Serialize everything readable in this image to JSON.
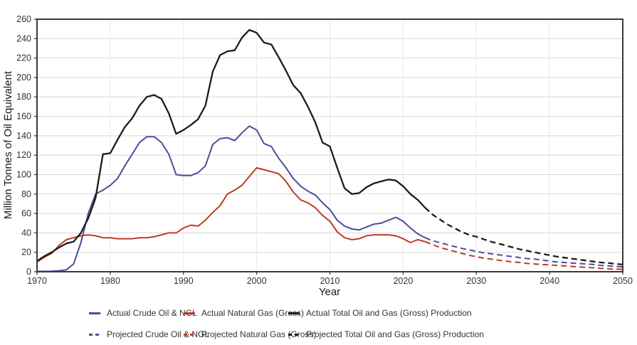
{
  "chart_data": {
    "type": "line",
    "title": "",
    "xlabel": "Year",
    "ylabel": "Million Tonnes of Oil Equivalent",
    "x_range": [
      1970,
      2050
    ],
    "y_range": [
      0,
      260
    ],
    "x_ticks": [
      1970,
      1980,
      1990,
      2000,
      2010,
      2020,
      2030,
      2040,
      2050
    ],
    "y_ticks": [
      0,
      20,
      40,
      60,
      80,
      100,
      120,
      140,
      160,
      180,
      200,
      220,
      240,
      260
    ],
    "grid": "both",
    "legend_position": "bottom",
    "series": [
      {
        "id": "actual-crude-oil-ngl",
        "label": "Actual Crude Oil & NGL",
        "color": "#4d4d99",
        "dash": "solid",
        "x_start": 1970,
        "x_step": 1,
        "values": [
          0.4,
          0.4,
          0.6,
          1,
          2,
          8,
          30,
          60,
          80,
          84,
          89,
          96,
          109,
          121,
          133,
          139,
          139,
          133,
          121,
          100,
          99,
          99,
          102,
          109,
          131,
          137,
          138,
          135,
          143,
          150,
          146,
          132,
          129,
          117,
          107,
          96,
          88,
          83,
          79,
          71,
          64,
          53,
          47,
          44,
          43,
          46,
          49,
          50,
          53,
          56,
          52,
          45,
          39,
          35
        ]
      },
      {
        "id": "actual-natural-gas-gross",
        "label": "Actual Natural Gas (Gross)",
        "color": "#c03a2b",
        "dash": "solid",
        "x_start": 1970,
        "x_step": 1,
        "values": [
          10,
          15,
          19,
          27,
          33,
          35,
          37,
          38,
          37,
          35,
          35,
          34,
          34,
          34,
          35,
          35,
          36,
          38,
          40,
          40,
          45,
          48,
          47,
          53,
          61,
          68,
          80,
          84,
          89,
          98,
          107,
          105,
          103,
          101,
          93,
          82,
          74,
          71,
          66,
          58,
          52,
          41,
          35,
          33,
          34,
          37,
          38,
          38,
          38,
          37,
          34,
          30,
          33,
          31
        ]
      },
      {
        "id": "actual-total-oil-and-gas-gross-production",
        "label": "Actual Total Oil and Gas (Gross) Production",
        "color": "#1c1c1c",
        "dash": "solid",
        "x_start": 1970,
        "x_step": 1,
        "values": [
          11,
          16,
          20,
          25,
          29,
          31,
          40,
          55,
          76,
          121,
          122,
          136,
          149,
          158,
          171,
          180,
          182,
          178,
          163,
          142,
          146,
          151,
          157,
          171,
          206,
          223,
          227,
          228,
          241,
          249,
          246,
          236,
          234,
          221,
          207,
          192,
          184,
          170,
          154,
          133,
          129,
          107,
          86,
          80,
          81,
          87,
          91,
          93,
          95,
          94,
          88,
          80,
          74,
          66
        ]
      },
      {
        "id": "projected-crude-oil-ngl",
        "label": "Projected Crude Oil & NGL",
        "color": "#4d4d99",
        "dash": "dashed",
        "x_start": 2023,
        "x_step": 1,
        "values": [
          35,
          32,
          30,
          28,
          26,
          24,
          22.5,
          21,
          19.5,
          18.5,
          17.5,
          16.5,
          15.5,
          14.5,
          13.5,
          13,
          12,
          11,
          10,
          9.5,
          9,
          8.5,
          8,
          7.5,
          6.5,
          6,
          5.5,
          5
        ]
      },
      {
        "id": "projected-natural-gas-gross",
        "label": "Projected Natural Gas (Gross)",
        "color": "#c03a2b",
        "dash": "dashed",
        "x_start": 2023,
        "x_step": 1,
        "values": [
          31,
          28,
          25,
          23,
          21,
          19,
          17,
          15.5,
          14,
          13,
          12,
          11,
          10,
          9.5,
          8.5,
          8,
          7.5,
          7,
          6.5,
          6,
          5.5,
          5,
          4.5,
          4,
          3.5,
          3,
          2.8,
          2.5
        ]
      },
      {
        "id": "projected-total-oil-and-gas-gross-production",
        "label": "Projected Total Oil and Gas (Gross) Production",
        "color": "#1c1c1c",
        "dash": "dashed",
        "x_start": 2023,
        "x_step": 1,
        "values": [
          66,
          59,
          54,
          49,
          45,
          41,
          38,
          36,
          33.5,
          31,
          29,
          27,
          25,
          23,
          21.5,
          20,
          18.5,
          17,
          15.5,
          14.5,
          13.5,
          12.5,
          11.5,
          10.5,
          9.5,
          9,
          8,
          7.5
        ]
      }
    ],
    "style": {
      "plot_border_color": "#3a3a3a",
      "grid_color_h": "#d8d8d8",
      "grid_color_v": "#e9e9e9",
      "tick_label_color": "#333333",
      "axis_title_color": "#1a1a1a",
      "background": "#ffffff"
    }
  },
  "legend": {
    "rows": [
      {
        "items": [
          0,
          1,
          2
        ]
      },
      {
        "items": [
          3,
          4,
          5
        ]
      }
    ]
  }
}
